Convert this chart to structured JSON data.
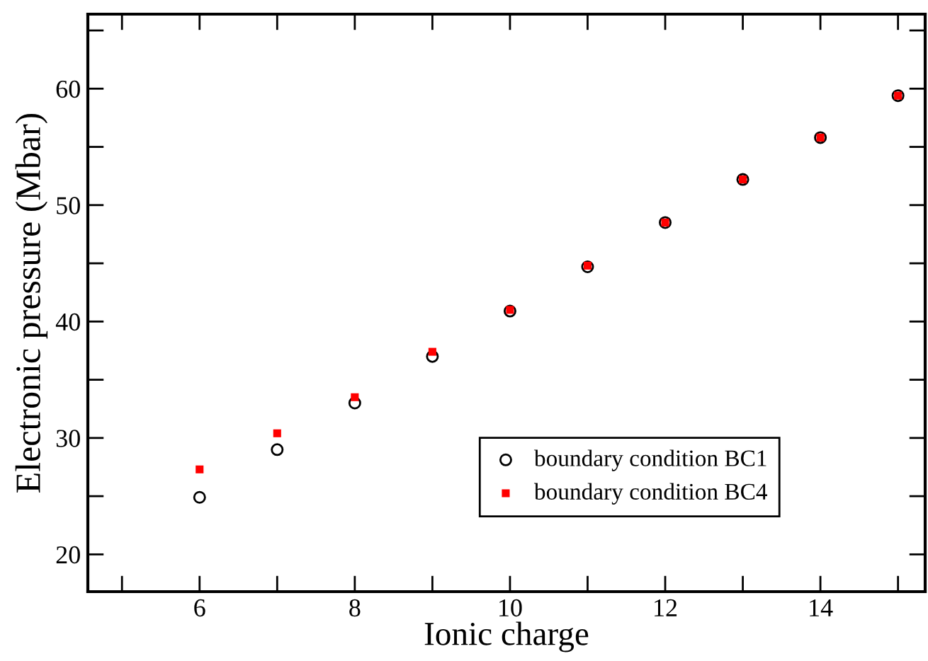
{
  "chart_data": {
    "type": "scatter",
    "xlabel": "Ionic charge",
    "ylabel": "Electronic pressure (Mbar)",
    "xlim": [
      4.56,
      15.35
    ],
    "ylim": [
      16.8,
      66.4
    ],
    "xticks": [
      {
        "value": 5,
        "label": null
      },
      6,
      {
        "value": 7,
        "label": null
      },
      8,
      {
        "value": 9,
        "label": null
      },
      10,
      {
        "value": 11,
        "label": null
      },
      12,
      {
        "value": 13,
        "label": null
      },
      14,
      {
        "value": 15,
        "label": null
      }
    ],
    "yticks": [
      20,
      {
        "value": 25,
        "label": null
      },
      30,
      {
        "value": 35,
        "label": null
      },
      40,
      {
        "value": 45,
        "label": null
      },
      50,
      {
        "value": 55,
        "label": null
      },
      60,
      {
        "value": 65,
        "label": null
      }
    ],
    "x": [
      6,
      7,
      8,
      9,
      10,
      11,
      12,
      13,
      14,
      15
    ],
    "grid": false,
    "legend": "bottom right",
    "series": [
      {
        "name": "boundary condition BC1",
        "color": "#000000",
        "marker": "circle",
        "values": [
          24.9,
          29.0,
          33.0,
          37.0,
          40.9,
          44.7,
          48.5,
          52.2,
          55.8,
          59.4
        ]
      },
      {
        "name": "boundary condition BC4",
        "color": "#ff0000",
        "marker": "square",
        "values": [
          27.3,
          30.4,
          33.5,
          37.4,
          41.0,
          44.8,
          48.5,
          52.2,
          55.8,
          59.4
        ]
      }
    ]
  }
}
